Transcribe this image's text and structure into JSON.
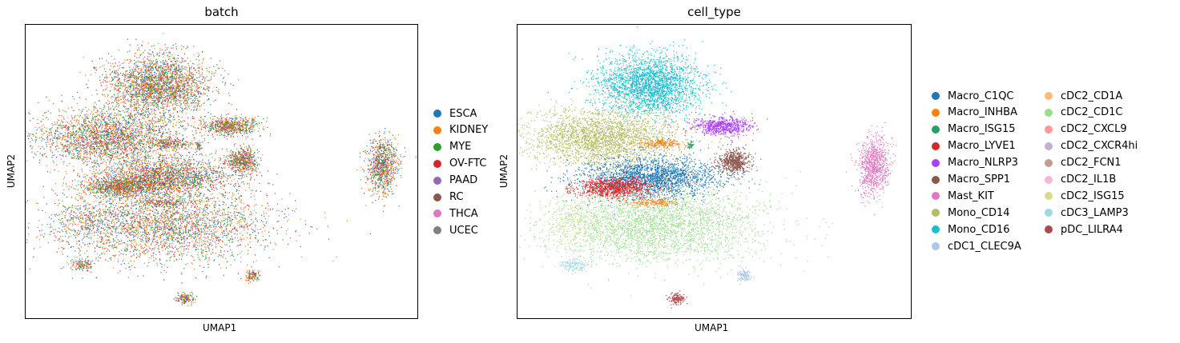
{
  "chart_data": [
    {
      "type": "scatter",
      "title": "batch",
      "xlabel": "UMAP1",
      "ylabel": "UMAP2",
      "legend_placement": "right",
      "grid": false,
      "series": [
        {
          "name": "ESCA",
          "color": "#1f77b4"
        },
        {
          "name": "KIDNEY",
          "color": "#ff7f0e"
        },
        {
          "name": "MYE",
          "color": "#2ca02c"
        },
        {
          "name": "OV-FTC",
          "color": "#d62728"
        },
        {
          "name": "PAAD",
          "color": "#9467bd"
        },
        {
          "name": "RC",
          "color": "#8c564b"
        },
        {
          "name": "THCA",
          "color": "#e377c2"
        },
        {
          "name": "UCEC",
          "color": "#7f7f7f"
        }
      ]
    },
    {
      "type": "scatter",
      "title": "cell_type",
      "xlabel": "UMAP1",
      "ylabel": "UMAP2",
      "legend_placement": "right",
      "grid": false,
      "series": [
        {
          "name": "Macro_C1QC",
          "color": "#1f77b4"
        },
        {
          "name": "Macro_INHBA",
          "color": "#ff7f0e"
        },
        {
          "name": "Macro_ISG15",
          "color": "#279e68"
        },
        {
          "name": "Macro_LYVE1",
          "color": "#d62728"
        },
        {
          "name": "Macro_NLRP3",
          "color": "#aa40fc"
        },
        {
          "name": "Macro_SPP1",
          "color": "#8c564b"
        },
        {
          "name": "Mast_KIT",
          "color": "#e377c2"
        },
        {
          "name": "Mono_CD14",
          "color": "#b5bd61"
        },
        {
          "name": "Mono_CD16",
          "color": "#17becf"
        },
        {
          "name": "cDC1_CLEC9A",
          "color": "#aec7e8"
        },
        {
          "name": "cDC2_CD1A",
          "color": "#ffbb78"
        },
        {
          "name": "cDC2_CD1C",
          "color": "#98df8a"
        },
        {
          "name": "cDC2_CXCL9",
          "color": "#ff9896"
        },
        {
          "name": "cDC2_CXCR4hi",
          "color": "#c5b0d5"
        },
        {
          "name": "cDC2_FCN1",
          "color": "#c49c94"
        },
        {
          "name": "cDC2_IL1B",
          "color": "#f7b6d2"
        },
        {
          "name": "cDC2_ISG15",
          "color": "#dbdb8d"
        },
        {
          "name": "cDC3_LAMP3",
          "color": "#9edae5"
        },
        {
          "name": "pDC_LILRA4",
          "color": "#ad494a"
        }
      ]
    }
  ]
}
